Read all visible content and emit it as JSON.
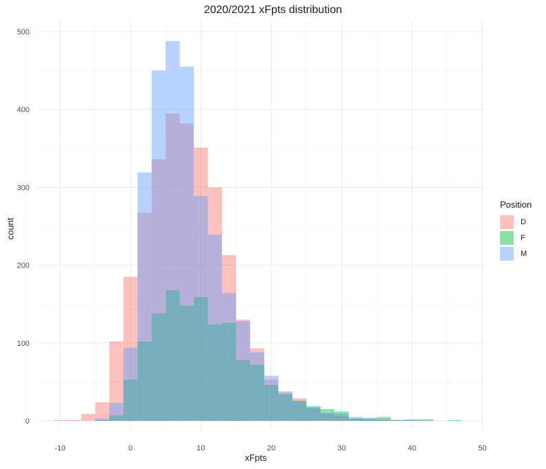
{
  "chart_data": {
    "type": "histogram",
    "title": "2020/2021 xFpts distribution",
    "xlabel": "xFpts",
    "ylabel": "count",
    "xlim": [
      -11,
      50
    ],
    "ylim": [
      0,
      510
    ],
    "xticks": [
      -10,
      0,
      10,
      20,
      30,
      40,
      50
    ],
    "yticks": [
      0,
      100,
      200,
      300,
      400,
      500
    ],
    "bin_width": 2,
    "grid": true,
    "legend": {
      "title": "Position",
      "placement": "right"
    },
    "series": [
      {
        "name": "D",
        "color": "#F8766D",
        "bins": [
          {
            "x": -10,
            "count": 1
          },
          {
            "x": -8,
            "count": 1
          },
          {
            "x": -6,
            "count": 9
          },
          {
            "x": -4,
            "count": 24
          },
          {
            "x": -2,
            "count": 102
          },
          {
            "x": 0,
            "count": 185
          },
          {
            "x": 2,
            "count": 267
          },
          {
            "x": 4,
            "count": 336
          },
          {
            "x": 6,
            "count": 395
          },
          {
            "x": 8,
            "count": 382
          },
          {
            "x": 10,
            "count": 351
          },
          {
            "x": 12,
            "count": 300
          },
          {
            "x": 14,
            "count": 213
          },
          {
            "x": 16,
            "count": 130
          },
          {
            "x": 18,
            "count": 93
          },
          {
            "x": 20,
            "count": 53
          },
          {
            "x": 22,
            "count": 36
          },
          {
            "x": 24,
            "count": 29
          },
          {
            "x": 26,
            "count": 16
          },
          {
            "x": 28,
            "count": 10
          },
          {
            "x": 30,
            "count": 6
          },
          {
            "x": 32,
            "count": 3
          },
          {
            "x": 34,
            "count": 2
          },
          {
            "x": 36,
            "count": 1
          },
          {
            "x": 38,
            "count": 1
          },
          {
            "x": 40,
            "count": 1
          }
        ]
      },
      {
        "name": "F",
        "color": "#00BA38",
        "bins": [
          {
            "x": -4,
            "count": 1
          },
          {
            "x": -2,
            "count": 7
          },
          {
            "x": 0,
            "count": 53
          },
          {
            "x": 2,
            "count": 102
          },
          {
            "x": 4,
            "count": 138
          },
          {
            "x": 6,
            "count": 168
          },
          {
            "x": 8,
            "count": 148
          },
          {
            "x": 10,
            "count": 159
          },
          {
            "x": 12,
            "count": 124
          },
          {
            "x": 14,
            "count": 126
          },
          {
            "x": 16,
            "count": 78
          },
          {
            "x": 18,
            "count": 72
          },
          {
            "x": 20,
            "count": 46
          },
          {
            "x": 22,
            "count": 34
          },
          {
            "x": 24,
            "count": 26
          },
          {
            "x": 26,
            "count": 19
          },
          {
            "x": 28,
            "count": 15
          },
          {
            "x": 30,
            "count": 12
          },
          {
            "x": 32,
            "count": 3
          },
          {
            "x": 34,
            "count": 3
          },
          {
            "x": 36,
            "count": 5
          },
          {
            "x": 38,
            "count": 1
          },
          {
            "x": 40,
            "count": 1
          },
          {
            "x": 42,
            "count": 2
          },
          {
            "x": 46,
            "count": 1
          }
        ]
      },
      {
        "name": "M",
        "color": "#619CFF",
        "bins": [
          {
            "x": -4,
            "count": 3
          },
          {
            "x": -2,
            "count": 23
          },
          {
            "x": 0,
            "count": 94
          },
          {
            "x": 2,
            "count": 319
          },
          {
            "x": 4,
            "count": 450
          },
          {
            "x": 6,
            "count": 488
          },
          {
            "x": 8,
            "count": 455
          },
          {
            "x": 10,
            "count": 289
          },
          {
            "x": 12,
            "count": 239
          },
          {
            "x": 14,
            "count": 164
          },
          {
            "x": 16,
            "count": 128
          },
          {
            "x": 18,
            "count": 88
          },
          {
            "x": 20,
            "count": 58
          },
          {
            "x": 22,
            "count": 38
          },
          {
            "x": 24,
            "count": 25
          },
          {
            "x": 26,
            "count": 17
          },
          {
            "x": 28,
            "count": 10
          },
          {
            "x": 30,
            "count": 9
          },
          {
            "x": 32,
            "count": 5
          },
          {
            "x": 34,
            "count": 4
          },
          {
            "x": 36,
            "count": 2
          },
          {
            "x": 38,
            "count": 1
          },
          {
            "x": 40,
            "count": 2
          },
          {
            "x": 42,
            "count": 1
          }
        ]
      }
    ]
  }
}
